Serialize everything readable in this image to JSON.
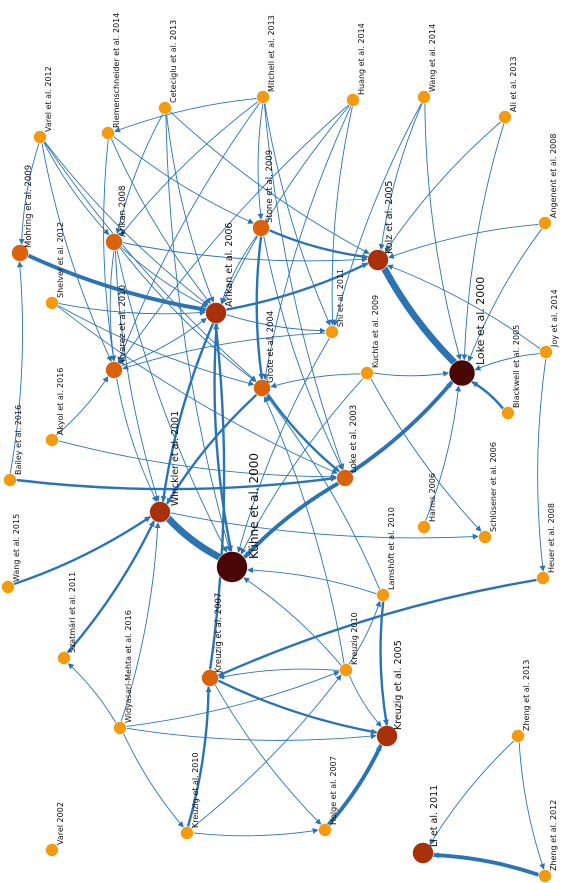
{
  "colors": {
    "edge": "#2b74b4",
    "node_small": "#f39a0f",
    "node_mid": "#d9620a",
    "node_large": "#a8300a",
    "node_max": "#4a0505"
  },
  "nodes": [
    {
      "id": "varel2012",
      "label": "Varel et al. 2012",
      "size": 1
    },
    {
      "id": "riemen2014",
      "label": "Riemenschneider et al. 2014",
      "size": 1
    },
    {
      "id": "cete2013",
      "label": "Ceteciglu et al. 2013",
      "size": 1
    },
    {
      "id": "mitchell2013",
      "label": "Mitchell et al. 2013",
      "size": 1
    },
    {
      "id": "huang2014",
      "label": "Huang et al. 2014",
      "size": 1
    },
    {
      "id": "wang2014",
      "label": "Wang et al. 2014",
      "size": 1
    },
    {
      "id": "ali2013",
      "label": "Ali et al. 2013",
      "size": 1
    },
    {
      "id": "mohring2009",
      "label": "Mohring et al. 2009",
      "size": 2
    },
    {
      "id": "arikan2008",
      "label": "Arikan 2008",
      "size": 2
    },
    {
      "id": "stone2009",
      "label": "Stone et al. 2009",
      "size": 2
    },
    {
      "id": "kolz2005",
      "label": "Kolz et al. 2005",
      "size": 3
    },
    {
      "id": "angenent2008",
      "label": "Angenent et al. 2008",
      "size": 1
    },
    {
      "id": "shelver2012",
      "label": "Shelver et al. 2012",
      "size": 1
    },
    {
      "id": "arikan2006",
      "label": "Arikan et al. 2006",
      "size": 3
    },
    {
      "id": "grote2004",
      "label": "Grote et al. 2004",
      "size": 2
    },
    {
      "id": "shi2011",
      "label": "Shi et al. 2011",
      "size": 1
    },
    {
      "id": "kuchta2009",
      "label": "Kuchta et al. 2009",
      "size": 1
    },
    {
      "id": "loke2000",
      "label": "Loke et al. 2000",
      "size": 4
    },
    {
      "id": "joy2014",
      "label": "Joy et al. 2014",
      "size": 1
    },
    {
      "id": "blackwell2005",
      "label": "Blackwell et al. 2005",
      "size": 1
    },
    {
      "id": "alvarez2010",
      "label": "Alvarez et al. 2010",
      "size": 2
    },
    {
      "id": "akyol2016",
      "label": "Akyol et al. 2016",
      "size": 1
    },
    {
      "id": "loke2003",
      "label": "Loke et al. 2003",
      "size": 2
    },
    {
      "id": "bailey2016",
      "label": "Bailey et al. 2016",
      "size": 1
    },
    {
      "id": "winckler2001",
      "label": "Winckler et al. 2001",
      "size": 3
    },
    {
      "id": "kuhne2000",
      "label": "Kühne et al. 2000",
      "size": 5
    },
    {
      "id": "harms2006",
      "label": "Harms 2006",
      "size": 1
    },
    {
      "id": "schlusener2006",
      "label": "Schlüsener et al. 2006",
      "size": 1
    },
    {
      "id": "heuer2008",
      "label": "Heuer et al. 2008",
      "size": 1
    },
    {
      "id": "wang2015",
      "label": "Wang et al. 2015",
      "size": 1
    },
    {
      "id": "szatmari2011",
      "label": "Szatmári et al. 2011",
      "size": 1
    },
    {
      "id": "lamshoft2010",
      "label": "Lamshöft et al. 2010",
      "size": 1
    },
    {
      "id": "kreuzig2007",
      "label": "Kreuzig et al. 2007",
      "size": 2
    },
    {
      "id": "widyasari2016",
      "label": "Widyasari-Mehta et al. 2016",
      "size": 1
    },
    {
      "id": "kreuzig2010b",
      "label": "Kreuzig 2010",
      "size": 1
    },
    {
      "id": "kreuzig2005",
      "label": "Kreuzig et al. 2005",
      "size": 3
    },
    {
      "id": "zheng2013",
      "label": "Zheng et al. 2013",
      "size": 1
    },
    {
      "id": "kreuzig2010a",
      "label": "Kreuzig et al. 2010",
      "size": 1
    },
    {
      "id": "holge2007",
      "label": "Holge et al. 2007",
      "size": 1
    },
    {
      "id": "li2011",
      "label": "Li et al. 2011",
      "size": 3
    },
    {
      "id": "varel2002",
      "label": "Varel 2002",
      "size": 1
    },
    {
      "id": "zheng2012",
      "label": "Zheng et al. 2012",
      "size": 1
    }
  ],
  "edges": [
    {
      "from": "varel2012",
      "to": "mohring2009",
      "w": 1
    },
    {
      "from": "varel2012",
      "to": "arikan2006",
      "w": 1
    },
    {
      "from": "varel2012",
      "to": "alvarez2010",
      "w": 1
    },
    {
      "from": "varel2012",
      "to": "arikan2008",
      "w": 1
    },
    {
      "from": "varel2012",
      "to": "grote2004",
      "w": 1
    },
    {
      "from": "riemen2014",
      "to": "arikan2006",
      "w": 1
    },
    {
      "from": "riemen2014",
      "to": "stone2009",
      "w": 1
    },
    {
      "from": "riemen2014",
      "to": "alvarez2010",
      "w": 1
    },
    {
      "from": "cete2013",
      "to": "arikan2008",
      "w": 1
    },
    {
      "from": "cete2013",
      "to": "arikan2006",
      "w": 1
    },
    {
      "from": "cete2013",
      "to": "kolz2005",
      "w": 1
    },
    {
      "from": "cete2013",
      "to": "kuhne2000",
      "w": 1
    },
    {
      "from": "mitchell2013",
      "to": "riemen2014",
      "w": 1
    },
    {
      "from": "mitchell2013",
      "to": "arikan2008",
      "w": 1
    },
    {
      "from": "mitchell2013",
      "to": "stone2009",
      "w": 1
    },
    {
      "from": "mitchell2013",
      "to": "shi2011",
      "w": 1
    },
    {
      "from": "mitchell2013",
      "to": "loke2003",
      "w": 1
    },
    {
      "from": "mitchell2013",
      "to": "alvarez2010",
      "w": 1
    },
    {
      "from": "huang2014",
      "to": "arikan2006",
      "w": 1
    },
    {
      "from": "huang2014",
      "to": "grote2004",
      "w": 1
    },
    {
      "from": "huang2014",
      "to": "alvarez2010",
      "w": 1
    },
    {
      "from": "huang2014",
      "to": "shi2011",
      "w": 1
    },
    {
      "from": "wang2014",
      "to": "kolz2005",
      "w": 1
    },
    {
      "from": "wang2014",
      "to": "loke2000",
      "w": 1
    },
    {
      "from": "wang2014",
      "to": "shi2011",
      "w": 1
    },
    {
      "from": "ali2013",
      "to": "kolz2005",
      "w": 1
    },
    {
      "from": "ali2013",
      "to": "loke2000",
      "w": 1
    },
    {
      "from": "mohring2009",
      "to": "arikan2006",
      "w": 3
    },
    {
      "from": "arikan2008",
      "to": "arikan2006",
      "w": 1
    },
    {
      "from": "arikan2008",
      "to": "kolz2005",
      "w": 1
    },
    {
      "from": "arikan2008",
      "to": "grote2004",
      "w": 1
    },
    {
      "from": "arikan2008",
      "to": "kuhne2000",
      "w": 1
    },
    {
      "from": "arikan2008",
      "to": "winckler2001",
      "w": 1
    },
    {
      "from": "arikan2008",
      "to": "alvarez2010",
      "w": 1
    },
    {
      "from": "stone2009",
      "to": "kolz2005",
      "w": 2
    },
    {
      "from": "stone2009",
      "to": "grote2004",
      "w": 2
    },
    {
      "from": "stone2009",
      "to": "arikan2006",
      "w": 1
    },
    {
      "from": "stone2009",
      "to": "loke2003",
      "w": 1
    },
    {
      "from": "kolz2005",
      "to": "loke2000",
      "w": 5
    },
    {
      "from": "angenent2008",
      "to": "kolz2005",
      "w": 1
    },
    {
      "from": "angenent2008",
      "to": "loke2000",
      "w": 1
    },
    {
      "from": "shelver2012",
      "to": "arikan2006",
      "w": 1
    },
    {
      "from": "shelver2012",
      "to": "grote2004",
      "w": 1
    },
    {
      "from": "shelver2012",
      "to": "loke2003",
      "w": 1
    },
    {
      "from": "arikan2006",
      "to": "kolz2005",
      "w": 2
    },
    {
      "from": "arikan2006",
      "to": "kuhne2000",
      "w": 2
    },
    {
      "from": "arikan2006",
      "to": "winckler2001",
      "w": 2
    },
    {
      "from": "arikan2006",
      "to": "shi2011",
      "w": 1
    },
    {
      "from": "grote2004",
      "to": "winckler2001",
      "w": 2
    },
    {
      "from": "grote2004",
      "to": "loke2003",
      "w": 2
    },
    {
      "from": "shi2011",
      "to": "alvarez2010",
      "w": 1
    },
    {
      "from": "shi2011",
      "to": "kuhne2000",
      "w": 1
    },
    {
      "from": "kuchta2009",
      "to": "loke2000",
      "w": 1
    },
    {
      "from": "kuchta2009",
      "to": "kuhne2000",
      "w": 1
    },
    {
      "from": "kuchta2009",
      "to": "schlusener2006",
      "w": 1
    },
    {
      "from": "kuchta2009",
      "to": "grote2004",
      "w": 1
    },
    {
      "from": "joy2014",
      "to": "kolz2005",
      "w": 1
    },
    {
      "from": "joy2014",
      "to": "heuer2008",
      "w": 1
    },
    {
      "from": "joy2014",
      "to": "loke2000",
      "w": 1
    },
    {
      "from": "blackwell2005",
      "to": "loke2000",
      "w": 2
    },
    {
      "from": "alvarez2010",
      "to": "arikan2006",
      "w": 1
    },
    {
      "from": "alvarez2010",
      "to": "winckler2001",
      "w": 1
    },
    {
      "from": "akyol2016",
      "to": "alvarez2010",
      "w": 1
    },
    {
      "from": "akyol2016",
      "to": "loke2003",
      "w": 1
    },
    {
      "from": "loke2003",
      "to": "loke2000",
      "w": 3
    },
    {
      "from": "loke2003",
      "to": "kuhne2000",
      "w": 3
    },
    {
      "from": "bailey2016",
      "to": "mohring2009",
      "w": 1
    },
    {
      "from": "bailey2016",
      "to": "loke2003",
      "w": 2
    },
    {
      "from": "winckler2001",
      "to": "kuhne2000",
      "w": 5
    },
    {
      "from": "winckler2001",
      "to": "schlusener2006",
      "w": 1
    },
    {
      "from": "harms2006",
      "to": "loke2000",
      "w": 1
    },
    {
      "from": "heuer2008",
      "to": "kreuzig2007",
      "w": 2
    },
    {
      "from": "wang2015",
      "to": "winckler2001",
      "w": 2
    },
    {
      "from": "szatmari2011",
      "to": "winckler2001",
      "w": 2
    },
    {
      "from": "lamshoft2010",
      "to": "kuhne2000",
      "w": 1
    },
    {
      "from": "lamshoft2010",
      "to": "kreuzig2005",
      "w": 2
    },
    {
      "from": "lamshoft2010",
      "to": "grote2004",
      "w": 1
    },
    {
      "from": "kreuzig2007",
      "to": "kreuzig2005",
      "w": 2
    },
    {
      "from": "kreuzig2007",
      "to": "holge2007",
      "w": 1
    },
    {
      "from": "kreuzig2007",
      "to": "arikan2006",
      "w": 2
    },
    {
      "from": "widyasari2016",
      "to": "winckler2001",
      "w": 1
    },
    {
      "from": "widyasari2016",
      "to": "kreuzig2005",
      "w": 1
    },
    {
      "from": "widyasari2016",
      "to": "kreuzig2010b",
      "w": 1
    },
    {
      "from": "widyasari2016",
      "to": "kreuzig2010a",
      "w": 1
    },
    {
      "from": "widyasari2016",
      "to": "szatmari2011",
      "w": 1
    },
    {
      "from": "kreuzig2010b",
      "to": "kreuzig2007",
      "w": 1
    },
    {
      "from": "kreuzig2010b",
      "to": "kuhne2000",
      "w": 1
    },
    {
      "from": "kreuzig2010b",
      "to": "kreuzig2005",
      "w": 1
    },
    {
      "from": "kreuzig2010b",
      "to": "lamshoft2010",
      "w": 1
    },
    {
      "from": "kreuzig2010b",
      "to": "grote2004",
      "w": 1
    },
    {
      "from": "kreuzig2010a",
      "to": "kreuzig2007",
      "w": 2
    },
    {
      "from": "kreuzig2010a",
      "to": "holge2007",
      "w": 1
    },
    {
      "from": "kreuzig2010a",
      "to": "kreuzig2010b",
      "w": 1
    },
    {
      "from": "holge2007",
      "to": "kreuzig2005",
      "w": 3
    },
    {
      "from": "zheng2013",
      "to": "li2011",
      "w": 1
    },
    {
      "from": "zheng2013",
      "to": "zheng2012",
      "w": 1
    },
    {
      "from": "zheng2012",
      "to": "li2011",
      "w": 3
    }
  ]
}
